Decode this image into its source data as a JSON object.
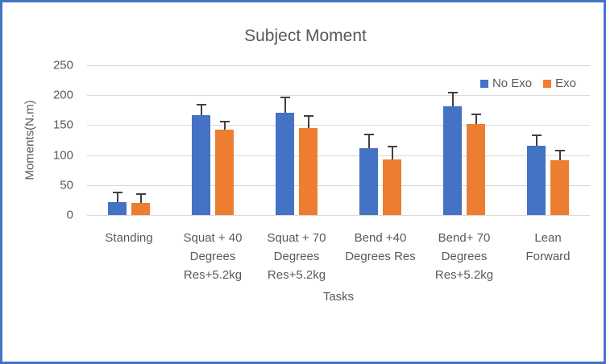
{
  "chart_data": {
    "type": "bar",
    "title": "Subject Moment",
    "xlabel": "Tasks",
    "ylabel": "Moments(N.m)",
    "ylim": [
      0,
      250
    ],
    "yticks": [
      0,
      50,
      100,
      150,
      200,
      250
    ],
    "grid": true,
    "legend_position": "top-right",
    "categories": [
      "Standing",
      "Squat + 40 Degrees Res+5.2kg",
      "Squat + 70 Degrees Res+5.2kg",
      "Bend +40 Degrees Res",
      "Bend+ 70 Degrees Res+5.2kg",
      "Lean Forward"
    ],
    "category_label_lines": [
      [
        "Standing"
      ],
      [
        "Squat + 40",
        "Degrees",
        "Res+5.2kg"
      ],
      [
        "Squat + 70",
        "Degrees",
        "Res+5.2kg"
      ],
      [
        "Bend +40",
        "Degrees Res"
      ],
      [
        "Bend+ 70",
        "Degrees",
        "Res+5.2kg"
      ],
      [
        "Lean",
        "Forward"
      ]
    ],
    "series": [
      {
        "name": "No Exo",
        "color": "#4472C4",
        "values": [
          21,
          167,
          171,
          111,
          182,
          115
        ],
        "errors": [
          18,
          19,
          26,
          25,
          24,
          20
        ]
      },
      {
        "name": "Exo",
        "color": "#ED7D31",
        "values": [
          20,
          143,
          145,
          93,
          152,
          92
        ],
        "errors": [
          16,
          14,
          22,
          22,
          18,
          17
        ]
      }
    ]
  },
  "colors": {
    "frame_border": "#4472C4",
    "gridline": "#D9D9D9",
    "text": "#595959",
    "error_bar": "#404040",
    "background": "#FFFFFF"
  }
}
